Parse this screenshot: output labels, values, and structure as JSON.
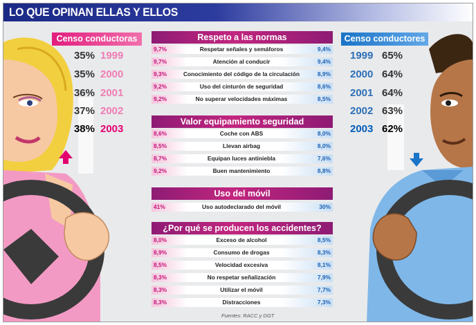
{
  "title": "LO QUE OPINAN ELLAS Y ELLOS",
  "colors": {
    "women": "#e3006f",
    "men": "#1a74c8",
    "section": "#8e1b74",
    "title_bar": "#1b2a86"
  },
  "women_census": {
    "title": "Censo conductoras",
    "rows": [
      {
        "pct": "35%",
        "year": "1999"
      },
      {
        "pct": "35%",
        "year": "2000"
      },
      {
        "pct": "36%",
        "year": "2001"
      },
      {
        "pct": "37%",
        "year": "2002"
      },
      {
        "pct": "38%",
        "year": "2003"
      }
    ]
  },
  "men_census": {
    "title": "Censo conductores",
    "rows": [
      {
        "year": "1999",
        "pct": "65%"
      },
      {
        "year": "2000",
        "pct": "64%"
      },
      {
        "year": "2001",
        "pct": "64%"
      },
      {
        "year": "2002",
        "pct": "63%"
      },
      {
        "year": "2003",
        "pct": "62%"
      }
    ]
  },
  "sections": [
    {
      "title": "Respeto a las normas",
      "rows": [
        {
          "women": "9,7%",
          "label": "Respetar señales y semáforos",
          "men": "9,4%"
        },
        {
          "women": "9,7%",
          "label": "Atención al conducir",
          "men": "9,4%"
        },
        {
          "women": "9,3%",
          "label": "Conocimiento del código de la circulación",
          "men": "8,9%"
        },
        {
          "women": "9,2%",
          "label": "Uso del cinturón de seguridad",
          "men": "8,6%"
        },
        {
          "women": "9,2%",
          "label": "No superar velocidades máximas",
          "men": "8,5%"
        }
      ]
    },
    {
      "title": "Valor equipamiento seguridad",
      "rows": [
        {
          "women": "8,6%",
          "label": "Coche con ABS",
          "men": "8,0%"
        },
        {
          "women": "8,5%",
          "label": "Llevan  airbag",
          "men": "8,0%"
        },
        {
          "women": "8,7%",
          "label": "Equipan luces antiniebla",
          "men": "7,6%"
        },
        {
          "women": "9,2%",
          "label": "Buen mantenimiento",
          "men": "8,8%"
        }
      ]
    },
    {
      "title": "Uso del móvil",
      "rows": [
        {
          "women": "41%",
          "label": "Uso autodeclarado del móvil",
          "men": "30%"
        }
      ]
    },
    {
      "title": "¿Por qué se producen los accidentes?",
      "rows": [
        {
          "women": "8,0%",
          "label": "Exceso de alcohol",
          "men": "8,5%"
        },
        {
          "women": "8,9%",
          "label": "Consumo de drogas",
          "men": "8,3%"
        },
        {
          "women": "8,5%",
          "label": "Velocidad excesiva",
          "men": "8,1%"
        },
        {
          "women": "8,3%",
          "label": "No respetar señalización",
          "men": "7,9%"
        },
        {
          "women": "8,3%",
          "label": "Utilizar el móvil",
          "men": "7,7%"
        },
        {
          "women": "8,3%",
          "label": "Distracciones",
          "men": "7,3%"
        }
      ]
    }
  ],
  "source": "Fuentes: RACC y DGT",
  "chart_data": {
    "type": "table",
    "title": "LO QUE OPINAN ELLAS Y ELLOS",
    "census": {
      "years": [
        "1999",
        "2000",
        "2001",
        "2002",
        "2003"
      ],
      "series": [
        {
          "name": "Censo conductoras",
          "values": [
            35,
            35,
            36,
            37,
            38
          ]
        },
        {
          "name": "Censo conductores",
          "values": [
            65,
            64,
            64,
            63,
            62
          ]
        }
      ]
    },
    "tables": [
      {
        "title": "Respeto a las normas",
        "categories": [
          "Respetar señales y semáforos",
          "Atención al conducir",
          "Conocimiento del código de la circulación",
          "Uso del cinturón de seguridad",
          "No superar velocidades máximas"
        ],
        "women": [
          9.7,
          9.7,
          9.3,
          9.2,
          9.2
        ],
        "men": [
          9.4,
          9.4,
          8.9,
          8.6,
          8.5
        ]
      },
      {
        "title": "Valor equipamiento seguridad",
        "categories": [
          "Coche con ABS",
          "Llevan  airbag",
          "Equipan luces antiniebla",
          "Buen mantenimiento"
        ],
        "women": [
          8.6,
          8.5,
          8.7,
          9.2
        ],
        "men": [
          8.0,
          8.0,
          7.6,
          8.8
        ]
      },
      {
        "title": "Uso del móvil",
        "categories": [
          "Uso autodeclarado del móvil"
        ],
        "women": [
          41
        ],
        "men": [
          30
        ]
      },
      {
        "title": "¿Por qué se producen los accidentes?",
        "categories": [
          "Exceso de alcohol",
          "Consumo de drogas",
          "Velocidad excesiva",
          "No respetar señalización",
          "Utilizar el móvil",
          "Distracciones"
        ],
        "women": [
          8.0,
          8.9,
          8.5,
          8.3,
          8.3,
          8.3
        ],
        "men": [
          8.5,
          8.3,
          8.1,
          7.9,
          7.7,
          7.3
        ]
      }
    ]
  }
}
